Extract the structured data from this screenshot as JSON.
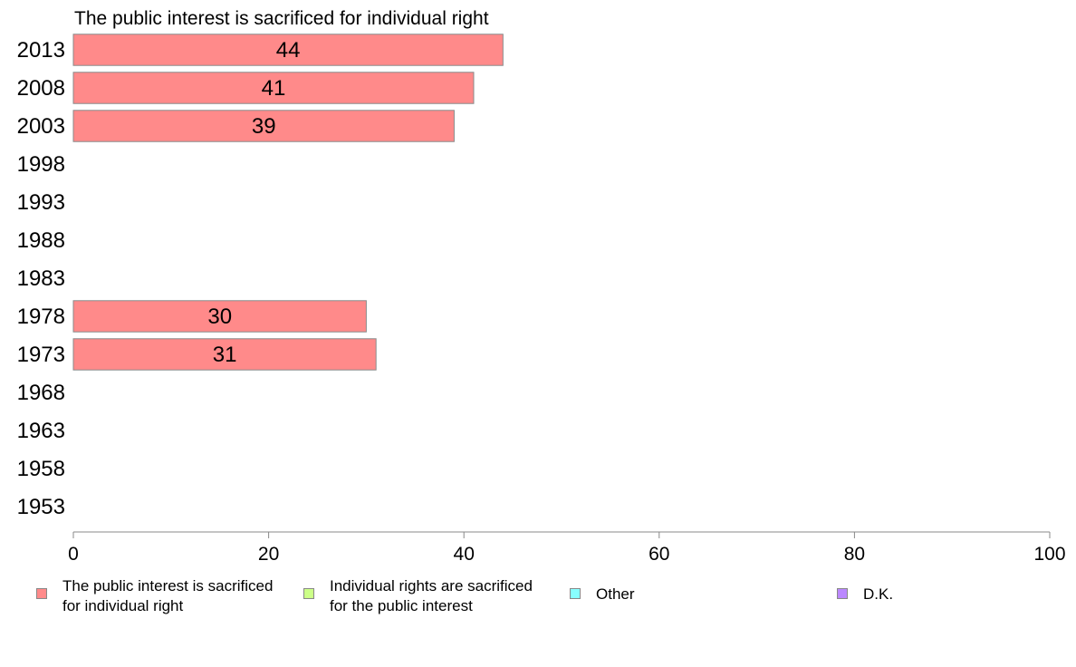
{
  "chart_data": {
    "type": "bar",
    "orientation": "horizontal",
    "title": "The public interest is sacrificed for individual right",
    "categories": [
      "2013",
      "2008",
      "2003",
      "1998",
      "1993",
      "1988",
      "1983",
      "1978",
      "1973",
      "1968",
      "1963",
      "1958",
      "1953"
    ],
    "series": [
      {
        "name": "The public interest is sacrificed for individual right",
        "color": "#ff8a8a",
        "values": [
          44,
          41,
          39,
          null,
          null,
          null,
          null,
          30,
          31,
          null,
          null,
          null,
          null
        ]
      }
    ],
    "xlim": [
      0,
      100
    ],
    "xticks": [
      "0",
      "20",
      "40",
      "60",
      "80",
      "100"
    ],
    "grid": false,
    "legend_position": "bottom"
  },
  "legend": {
    "items": [
      {
        "label": "The public interest is sacrificed\nfor individual right",
        "color": "#ff8a8a"
      },
      {
        "label": "Individual rights are sacrificed\nfor the public interest",
        "color": "#ccff88"
      },
      {
        "label": "Other",
        "color": "#88ffff"
      },
      {
        "label": "D.K.",
        "color": "#bb88ff"
      }
    ]
  }
}
